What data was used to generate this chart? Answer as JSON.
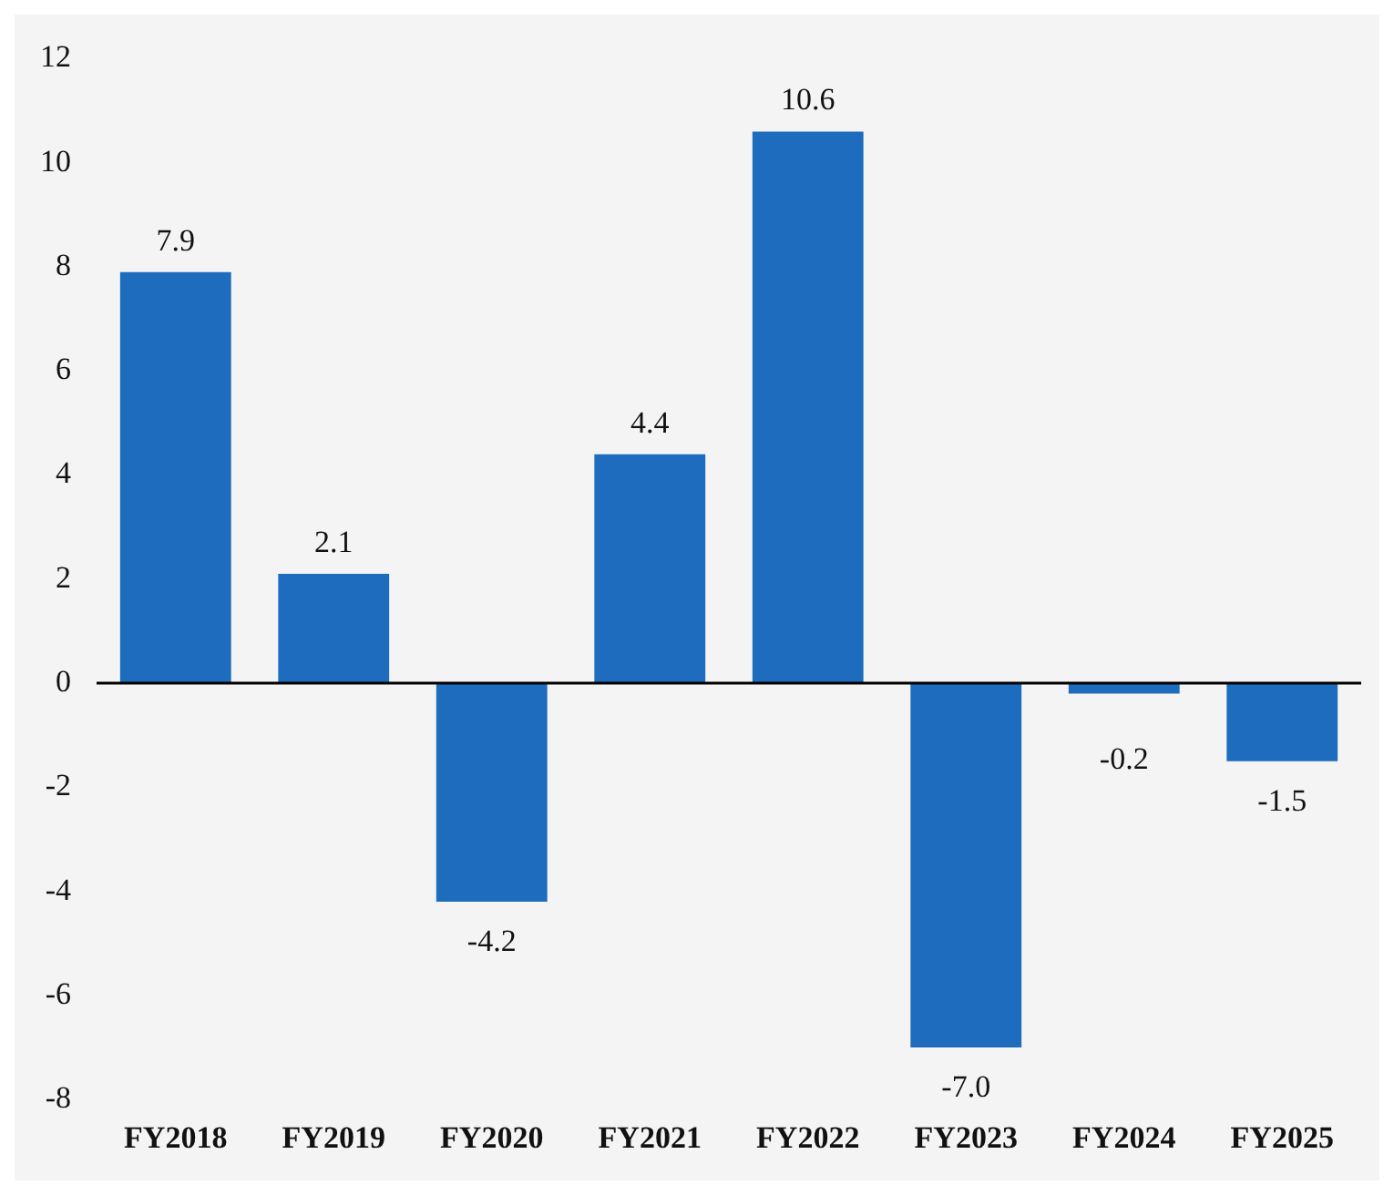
{
  "chart_data": {
    "type": "bar",
    "categories": [
      "FY2018",
      "FY2019",
      "FY2020",
      "FY2021",
      "FY2022",
      "FY2023",
      "FY2024",
      "FY2025"
    ],
    "values": [
      7.9,
      2.1,
      -4.2,
      4.4,
      10.6,
      -7.0,
      -0.2,
      -1.5
    ],
    "value_labels": [
      "7.9",
      "2.1",
      "-4.2",
      "4.4",
      "10.6",
      "-7.0",
      "-0.2",
      "-1.5"
    ],
    "color": "#1d6cbd",
    "ylim": [
      -8,
      12
    ],
    "yticks": [
      -8,
      -6,
      -4,
      -2,
      0,
      2,
      4,
      6,
      8,
      10,
      12
    ],
    "ref_lines": [
      {
        "axis": "y",
        "value": 0,
        "color": "#000000"
      }
    ],
    "grid": false,
    "legend": false
  }
}
